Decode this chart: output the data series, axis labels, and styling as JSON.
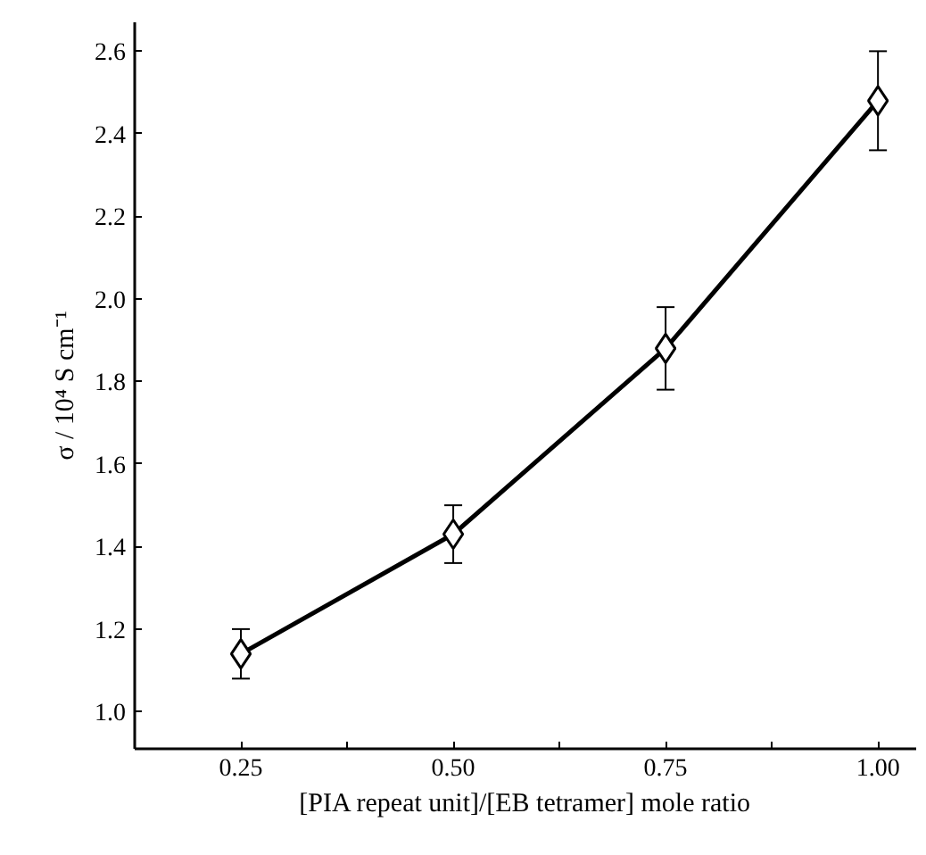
{
  "chart_data": {
    "type": "line",
    "xlabel": "[PIA repeat unit]/[EB tetramer] mole ratio",
    "ylabel": "σ / 10⁴ S cm⁻¹",
    "x": [
      0.25,
      0.5,
      0.75,
      1.0
    ],
    "series": [
      {
        "color": "#000000",
        "values": [
          1.14,
          1.43,
          1.88,
          2.48
        ],
        "errors": [
          0.06,
          0.07,
          0.1,
          0.12
        ]
      }
    ],
    "xlim": [
      0.125,
      1.045
    ],
    "ylim": [
      0.91,
      2.67
    ],
    "xticks": [
      {
        "value": 0.25,
        "label": "0.25"
      },
      {
        "value": 0.375,
        "label": null
      },
      {
        "value": 0.5,
        "label": "0.50"
      },
      {
        "value": 0.625,
        "label": null
      },
      {
        "value": 0.75,
        "label": "0.75"
      },
      {
        "value": 0.875,
        "label": null
      },
      {
        "value": 1.0,
        "label": "1.00"
      }
    ],
    "yticks": [
      {
        "value": 1.0,
        "label": "1.0"
      },
      {
        "value": 1.2,
        "label": "1.2"
      },
      {
        "value": 1.4,
        "label": "1.4"
      },
      {
        "value": 1.6,
        "label": "1.6"
      },
      {
        "value": 1.8,
        "label": "1.8"
      },
      {
        "value": 2.0,
        "label": "2.0"
      },
      {
        "value": 2.2,
        "label": "2.2"
      },
      {
        "value": 2.4,
        "label": "2.4"
      },
      {
        "value": 2.6,
        "label": "2.6"
      }
    ],
    "grid": false,
    "marker": "diamond",
    "line_style": "solid"
  }
}
